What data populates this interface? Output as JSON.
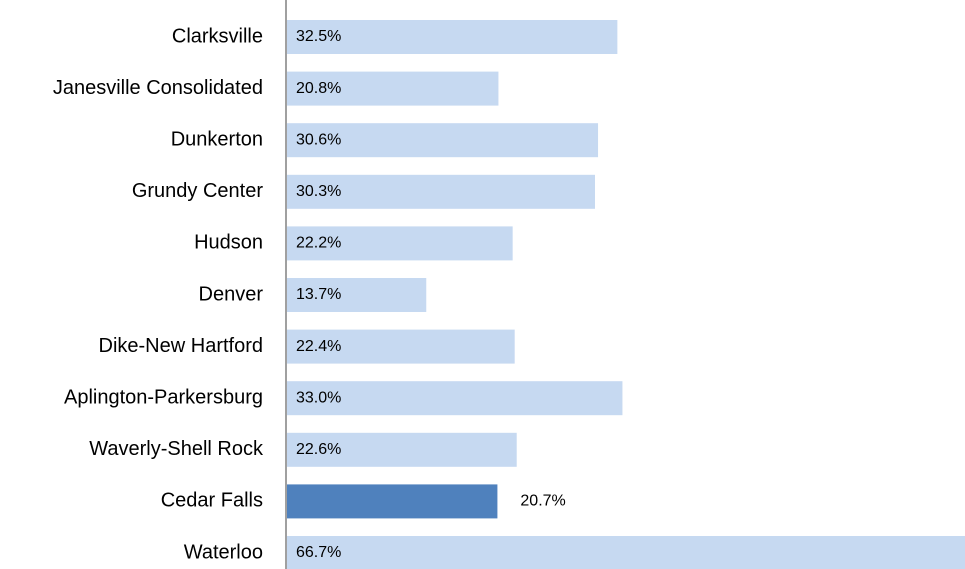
{
  "chart_data": {
    "type": "barh",
    "categories": [
      "Clarksville",
      "Janesville Consolidated",
      "Dunkerton",
      "Grundy Center",
      "Hudson",
      "Denver",
      "Dike-New Hartford",
      "Aplington-Parkersburg",
      "Waverly-Shell Rock",
      "Cedar Falls",
      "Waterloo"
    ],
    "values": [
      32.5,
      20.8,
      30.6,
      30.3,
      22.2,
      13.7,
      22.4,
      33.0,
      22.6,
      20.7,
      66.7
    ],
    "value_labels": [
      "32.5%",
      "20.8%",
      "30.6%",
      "30.3%",
      "22.2%",
      "13.7%",
      "22.4%",
      "33.0%",
      "22.6%",
      "20.7%",
      "66.7%"
    ],
    "colors": [
      "#c6d9f1",
      "#c6d9f1",
      "#c6d9f1",
      "#c6d9f1",
      "#c6d9f1",
      "#c6d9f1",
      "#c6d9f1",
      "#c6d9f1",
      "#c6d9f1",
      "#4f81bd",
      "#c6d9f1"
    ]
  }
}
